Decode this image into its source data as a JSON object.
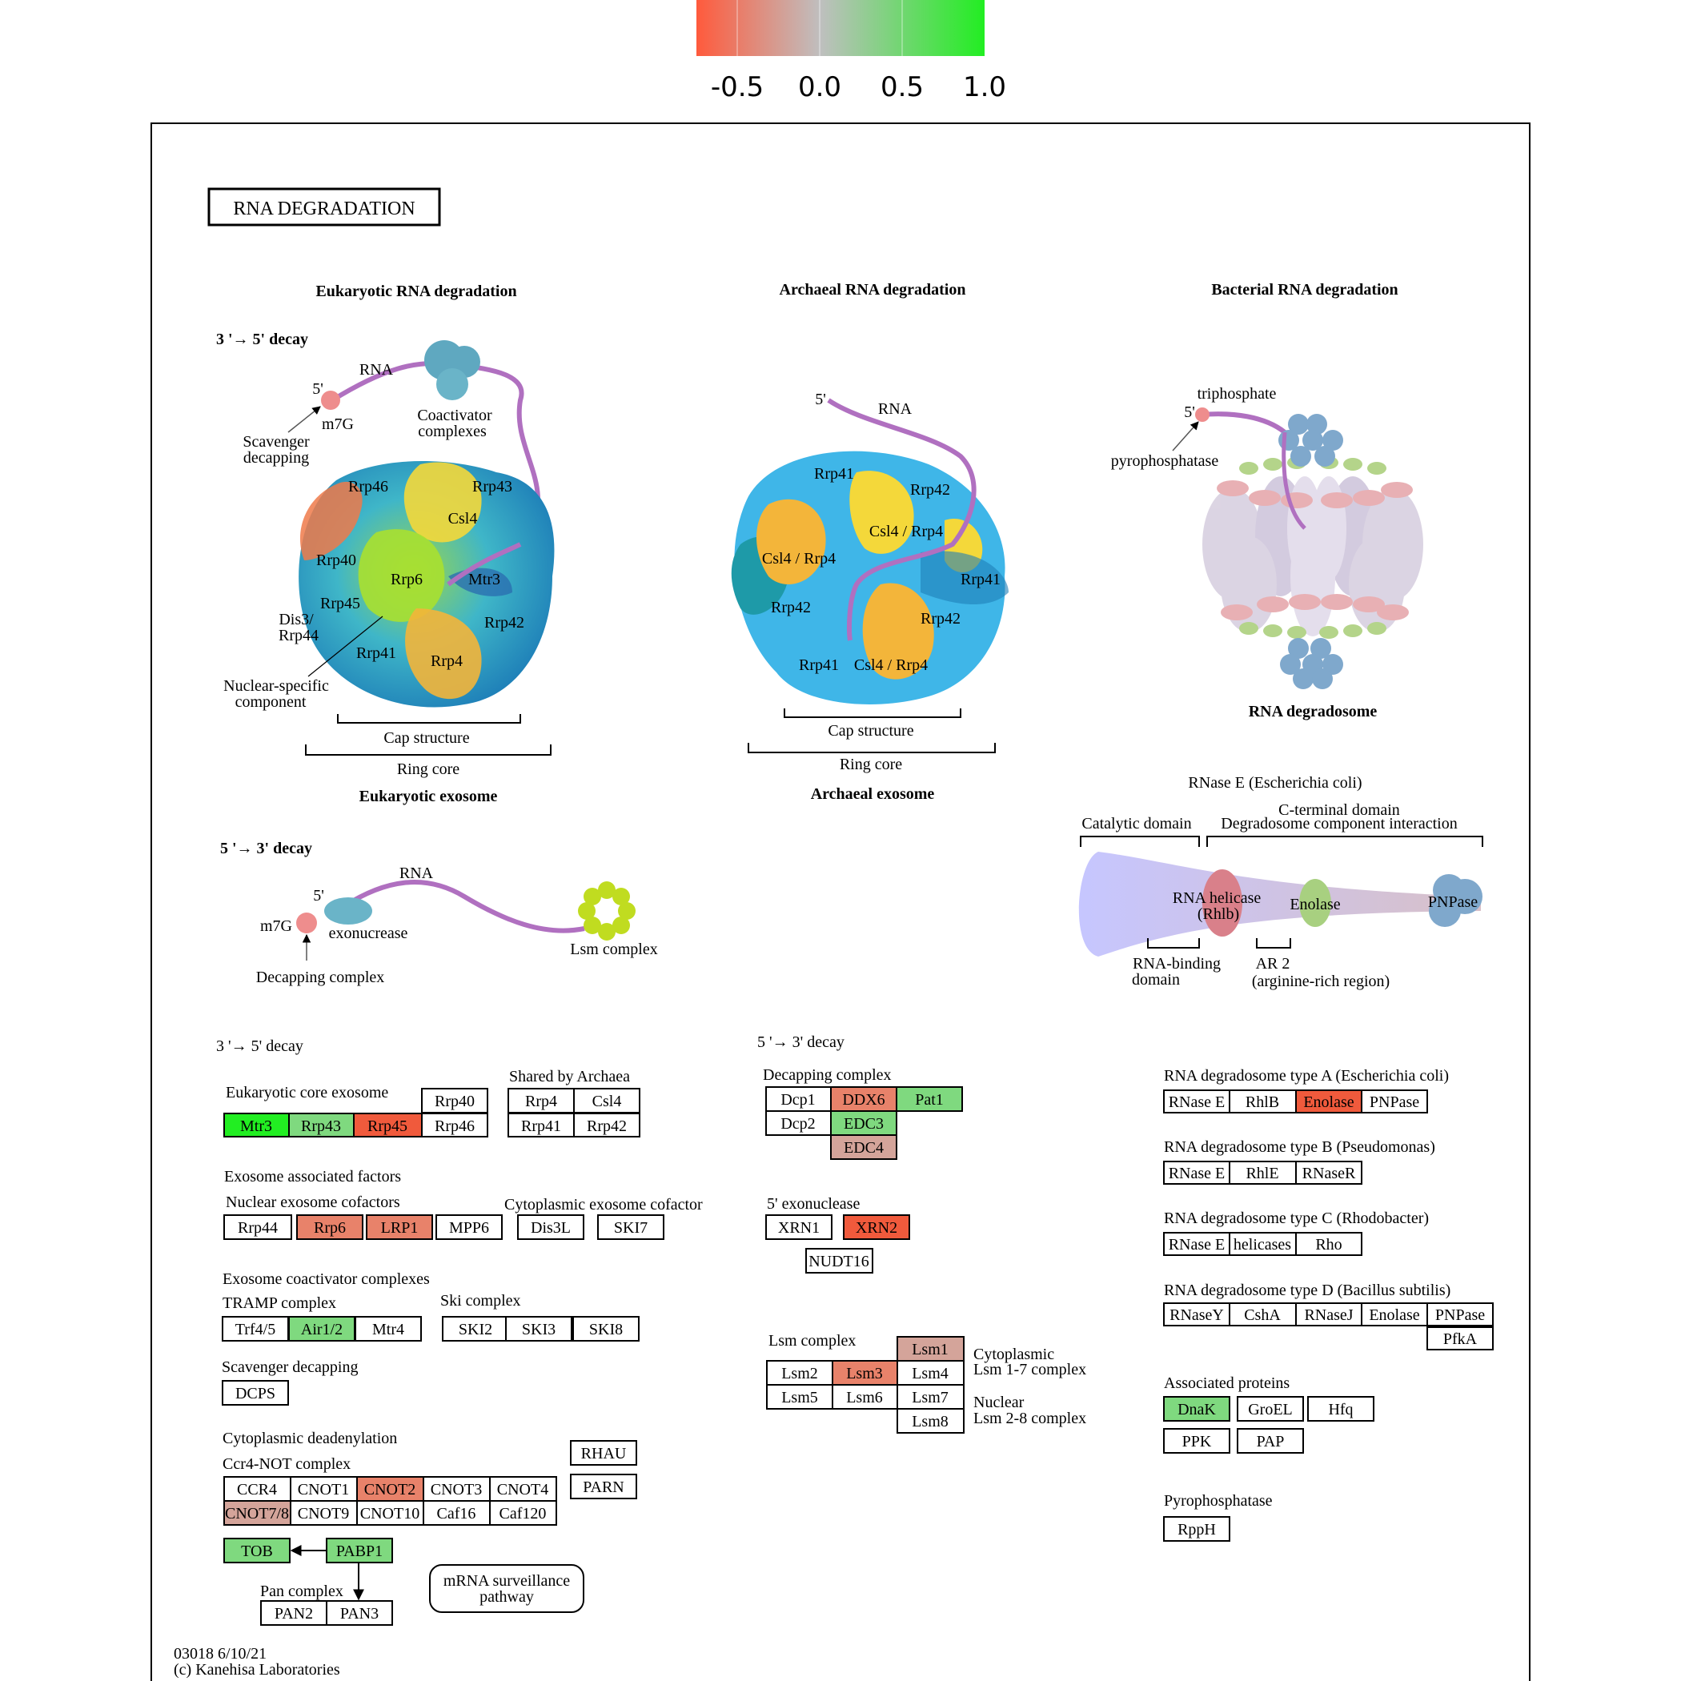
{
  "legend": {
    "ticks": [
      "-0.5",
      "0.0",
      "0.5",
      "1.0"
    ],
    "colors": {
      "low": "#ff5a3c",
      "mid": "#bfbfbf",
      "high": "#22ee22"
    }
  },
  "diagram": {
    "title": "RNA  DEGRADATION",
    "footer_id": "03018 6/10/21",
    "footer_copyright": "(c) Kanehisa Laboratories"
  },
  "colors": {
    "green_strong": "#22ee22",
    "green": "#7fd97f",
    "red_strong": "#f05a3c",
    "red": "#e8826a",
    "pink": "#d4a49a",
    "white": "#ffffff"
  },
  "sections": {
    "euk_heading": "Eukaryotic RNA degradation",
    "arch_heading": "Archaeal RNA degradation",
    "bact_heading": "Bacterial RNA degradation",
    "decay35": "3 '→ 5' decay",
    "decay53": "5 '→ 3' decay"
  },
  "euk_illustration": {
    "rna": "RNA",
    "five": "5'",
    "m7g": "m7G",
    "scavenger": [
      "Scavenger",
      "decapping"
    ],
    "coactivator": [
      "Coactivator",
      "complexes"
    ],
    "subunits": [
      "Rrp46",
      "Rrp43",
      "Csl4",
      "Rrp40",
      "Rrp6",
      "Mtr3",
      "Rrp45",
      "Dis3/",
      "Rrp44",
      "Rrp42",
      "Rrp41",
      "Rrp4"
    ],
    "nuclear": [
      "Nuclear-specific",
      "component"
    ],
    "cap": "Cap structure",
    "ring": "Ring core",
    "name": "Eukaryotic exosome"
  },
  "arch_illustration": {
    "five": "5'",
    "rna": "RNA",
    "subunits": [
      "Rrp41",
      "Rrp42",
      "Csl4 / Rrp4",
      "Csl4 / Rrp4",
      "Rrp41",
      "Rrp42",
      "Rrp42",
      "Rrp41",
      "Csl4 / Rrp4"
    ],
    "cap": "Cap structure",
    "ring": "Ring core",
    "name": "Archaeal exosome"
  },
  "bact_illustration": {
    "triphosphate": "triphosphate",
    "five": "5'",
    "pyrophosphatase": "pyrophosphatase",
    "name": "RNA degradosome",
    "rnase_title": "RNase E (Escherichia coli)",
    "cterm": "C-terminal domain",
    "catalytic": "Catalytic domain",
    "degradosome_interaction": "Degradosome component interaction",
    "helicase": [
      "RNA helicase",
      "(Rhlb)"
    ],
    "enolase": "Enolase",
    "pnpase": "PNPase",
    "rna_binding": [
      "RNA-binding",
      "domain"
    ],
    "ar2": [
      "AR 2",
      "(arginine-rich region)"
    ]
  },
  "euk53_illustration": {
    "rna": "RNA",
    "five": "5'",
    "m7g": "m7G",
    "exonuclease": "exonucrease",
    "lsm": "Lsm complex",
    "decapping": "Decapping complex"
  },
  "labels": {
    "l35": "3 '→ 5' decay",
    "euk_core": "Eukaryotic core exosome",
    "shared": "Shared by Archaea",
    "assoc": "Exosome associated factors",
    "nuclear_cof": "Nuclear exosome cofactors",
    "cyto_cof": "Cytoplasmic exosome cofactor",
    "coact": "Exosome coactivator complexes",
    "tramp": "TRAMP complex",
    "ski": "Ski complex",
    "scav": "Scavenger decapping",
    "cytodead": "Cytoplasmic deadenylation",
    "ccr4not": "Ccr4-NOT complex",
    "pan": "Pan complex",
    "mrna_surv": [
      "mRNA surveillance",
      "pathway"
    ],
    "l53": "5 '→ 3' decay",
    "decap": "Decapping complex",
    "exo5": "5' exonuclease",
    "lsm": "Lsm complex",
    "cyto_lsm": [
      "Cytoplasmic",
      "Lsm 1-7 complex"
    ],
    "nuc_lsm": [
      "Nuclear",
      "Lsm 2-8 complex"
    ],
    "typeA": "RNA degradosome type A (Escherichia coli)",
    "typeB": "RNA degradosome type B (Pseudomonas)",
    "typeC": "RNA degradosome type C (Rhodobacter)",
    "typeD": "RNA degradosome type D (Bacillus subtilis)",
    "assoc_prot": "Associated proteins",
    "pyro": "Pyrophosphatase"
  },
  "genes": [
    {
      "id": "Mtr3",
      "label": "Mtr3",
      "fill": "green_strong"
    },
    {
      "id": "Rrp43",
      "label": "Rrp43",
      "fill": "green"
    },
    {
      "id": "Rrp45",
      "label": "Rrp45",
      "fill": "red_strong"
    },
    {
      "id": "Rrp40",
      "label": "Rrp40",
      "fill": "white"
    },
    {
      "id": "Rrp46",
      "label": "Rrp46",
      "fill": "white"
    },
    {
      "id": "Rrp4",
      "label": "Rrp4",
      "fill": "white"
    },
    {
      "id": "Csl4",
      "label": "Csl4",
      "fill": "white"
    },
    {
      "id": "Rrp41",
      "label": "Rrp41",
      "fill": "white"
    },
    {
      "id": "Rrp42",
      "label": "Rrp42",
      "fill": "white"
    },
    {
      "id": "Rrp44",
      "label": "Rrp44",
      "fill": "white"
    },
    {
      "id": "Rrp6",
      "label": "Rrp6",
      "fill": "red"
    },
    {
      "id": "LRP1",
      "label": "LRP1",
      "fill": "red"
    },
    {
      "id": "MPP6",
      "label": "MPP6",
      "fill": "white"
    },
    {
      "id": "Dis3L",
      "label": "Dis3L",
      "fill": "white"
    },
    {
      "id": "SKI7",
      "label": "SKI7",
      "fill": "white"
    },
    {
      "id": "Trf45",
      "label": "Trf4/5",
      "fill": "white"
    },
    {
      "id": "Air12",
      "label": "Air1/2",
      "fill": "green"
    },
    {
      "id": "Mtr4",
      "label": "Mtr4",
      "fill": "white"
    },
    {
      "id": "SKI2",
      "label": "SKI2",
      "fill": "white"
    },
    {
      "id": "SKI3",
      "label": "SKI3",
      "fill": "white"
    },
    {
      "id": "SKI8",
      "label": "SKI8",
      "fill": "white"
    },
    {
      "id": "DCPS",
      "label": "DCPS",
      "fill": "white"
    },
    {
      "id": "RHAU",
      "label": "RHAU",
      "fill": "white"
    },
    {
      "id": "PARN",
      "label": "PARN",
      "fill": "white"
    },
    {
      "id": "CCR4",
      "label": "CCR4",
      "fill": "white"
    },
    {
      "id": "CNOT1",
      "label": "CNOT1",
      "fill": "white"
    },
    {
      "id": "CNOT2",
      "label": "CNOT2",
      "fill": "red"
    },
    {
      "id": "CNOT3",
      "label": "CNOT3",
      "fill": "white"
    },
    {
      "id": "CNOT4",
      "label": "CNOT4",
      "fill": "white"
    },
    {
      "id": "CNOT78",
      "label": "CNOT7/8",
      "fill": "pink"
    },
    {
      "id": "CNOT9",
      "label": "CNOT9",
      "fill": "white"
    },
    {
      "id": "CNOT10",
      "label": "CNOT10",
      "fill": "white"
    },
    {
      "id": "Caf16",
      "label": "Caf16",
      "fill": "white"
    },
    {
      "id": "Caf120",
      "label": "Caf120",
      "fill": "white"
    },
    {
      "id": "TOB",
      "label": "TOB",
      "fill": "green"
    },
    {
      "id": "PABP1",
      "label": "PABP1",
      "fill": "green"
    },
    {
      "id": "PAN2",
      "label": "PAN2",
      "fill": "white"
    },
    {
      "id": "PAN3",
      "label": "PAN3",
      "fill": "white"
    },
    {
      "id": "Dcp1",
      "label": "Dcp1",
      "fill": "white"
    },
    {
      "id": "DDX6",
      "label": "DDX6",
      "fill": "red"
    },
    {
      "id": "Pat1",
      "label": "Pat1",
      "fill": "green"
    },
    {
      "id": "Dcp2",
      "label": "Dcp2",
      "fill": "white"
    },
    {
      "id": "EDC3",
      "label": "EDC3",
      "fill": "green"
    },
    {
      "id": "EDC4",
      "label": "EDC4",
      "fill": "pink"
    },
    {
      "id": "XRN1",
      "label": "XRN1",
      "fill": "white"
    },
    {
      "id": "XRN2",
      "label": "XRN2",
      "fill": "red_strong"
    },
    {
      "id": "NUDT16",
      "label": "NUDT16",
      "fill": "white"
    },
    {
      "id": "Lsm1",
      "label": "Lsm1",
      "fill": "pink"
    },
    {
      "id": "Lsm2",
      "label": "Lsm2",
      "fill": "white"
    },
    {
      "id": "Lsm3",
      "label": "Lsm3",
      "fill": "red"
    },
    {
      "id": "Lsm4",
      "label": "Lsm4",
      "fill": "white"
    },
    {
      "id": "Lsm5",
      "label": "Lsm5",
      "fill": "white"
    },
    {
      "id": "Lsm6",
      "label": "Lsm6",
      "fill": "white"
    },
    {
      "id": "Lsm7",
      "label": "Lsm7",
      "fill": "white"
    },
    {
      "id": "Lsm8",
      "label": "Lsm8",
      "fill": "white"
    },
    {
      "id": "A_RNaseE",
      "label": "RNase E",
      "fill": "white"
    },
    {
      "id": "A_RhlB",
      "label": "RhlB",
      "fill": "white"
    },
    {
      "id": "A_Enolase",
      "label": "Enolase",
      "fill": "red_strong"
    },
    {
      "id": "A_PNPase",
      "label": "PNPase",
      "fill": "white"
    },
    {
      "id": "B_RNaseE",
      "label": "RNase E",
      "fill": "white"
    },
    {
      "id": "B_RhlE",
      "label": "RhlE",
      "fill": "white"
    },
    {
      "id": "B_RNaseR",
      "label": "RNaseR",
      "fill": "white"
    },
    {
      "id": "C_RNaseE",
      "label": "RNase E",
      "fill": "white"
    },
    {
      "id": "C_helicases",
      "label": "helicases",
      "fill": "white"
    },
    {
      "id": "C_Rho",
      "label": "Rho",
      "fill": "white"
    },
    {
      "id": "D_RNaseY",
      "label": "RNaseY",
      "fill": "white"
    },
    {
      "id": "D_CshA",
      "label": "CshA",
      "fill": "white"
    },
    {
      "id": "D_RNaseJ",
      "label": "RNaseJ",
      "fill": "white"
    },
    {
      "id": "D_Enolase",
      "label": "Enolase",
      "fill": "white"
    },
    {
      "id": "D_PNPase",
      "label": "PNPase",
      "fill": "white"
    },
    {
      "id": "D_PfkA",
      "label": "PfkA",
      "fill": "white"
    },
    {
      "id": "DnaK",
      "label": "DnaK",
      "fill": "green"
    },
    {
      "id": "GroEL",
      "label": "GroEL",
      "fill": "white"
    },
    {
      "id": "Hfq",
      "label": "Hfq",
      "fill": "white"
    },
    {
      "id": "PPK",
      "label": "PPK",
      "fill": "white"
    },
    {
      "id": "PAP",
      "label": "PAP",
      "fill": "white"
    },
    {
      "id": "RppH",
      "label": "RppH",
      "fill": "white"
    }
  ]
}
